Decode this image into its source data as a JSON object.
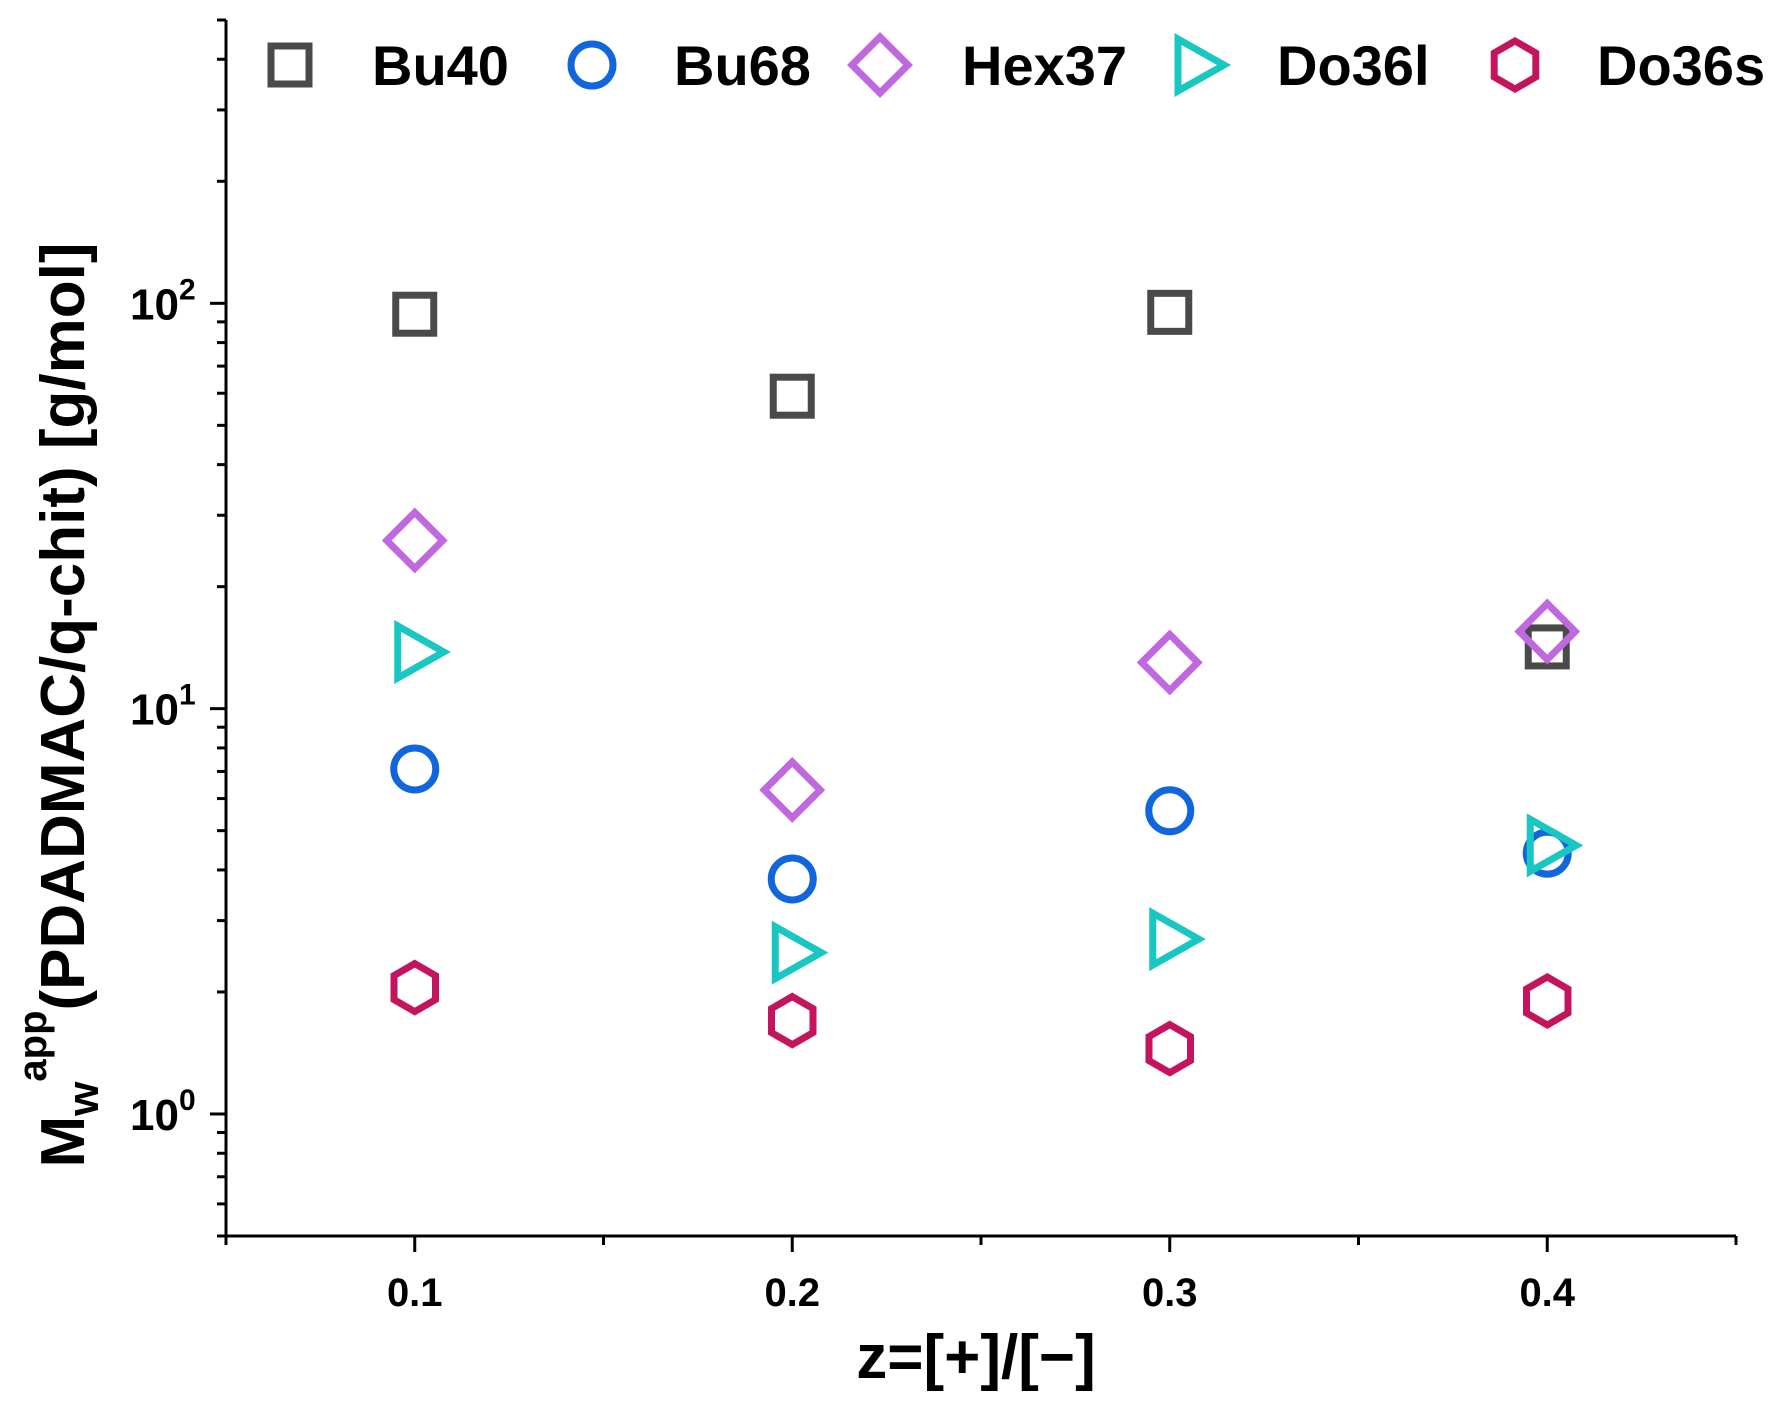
{
  "chart_data": {
    "type": "scatter",
    "xlabel": "z=[+]/[−]",
    "ylabel": {
      "main": "M",
      "subscript": "w",
      "superscript": "app",
      "rest": "(PDADMAC/q-chit) [g/mol]"
    },
    "xscale": "linear",
    "yscale": "log",
    "xlim": [
      0.05,
      0.45
    ],
    "ylim": [
      0.5,
      500
    ],
    "xticks": [
      0.1,
      0.2,
      0.3,
      0.4
    ],
    "xtick_labels": [
      "0.1",
      "0.2",
      "0.3",
      "0.4"
    ],
    "ytick_labels": [
      {
        "base": "10",
        "exp": "0",
        "value": 1
      },
      {
        "base": "10",
        "exp": "1",
        "value": 10
      },
      {
        "base": "10",
        "exp": "2",
        "value": 100
      }
    ],
    "legend_position": "top",
    "series": [
      {
        "name": "Bu40",
        "marker": "square",
        "color": "#4a4a4a",
        "x": [
          0.1,
          0.2,
          0.3,
          0.4
        ],
        "y": [
          94,
          59,
          95,
          14.2
        ]
      },
      {
        "name": "Bu68",
        "marker": "circle",
        "color": "#1166dd",
        "x": [
          0.1,
          0.2,
          0.3,
          0.4
        ],
        "y": [
          7.1,
          3.8,
          5.6,
          4.4
        ]
      },
      {
        "name": "Hex37",
        "marker": "diamond",
        "color": "#c068e0",
        "x": [
          0.1,
          0.2,
          0.3,
          0.4
        ],
        "y": [
          26,
          6.3,
          13,
          15.5
        ]
      },
      {
        "name": "Do36l",
        "marker": "triangle-right",
        "color": "#18c6c2",
        "x": [
          0.1,
          0.2,
          0.3,
          0.4
        ],
        "y": [
          13.8,
          2.5,
          2.7,
          4.6
        ]
      },
      {
        "name": "Do36s",
        "marker": "hexagon",
        "color": "#c4145e",
        "x": [
          0.1,
          0.2,
          0.3,
          0.4
        ],
        "y": [
          2.05,
          1.7,
          1.45,
          1.9
        ]
      }
    ]
  }
}
